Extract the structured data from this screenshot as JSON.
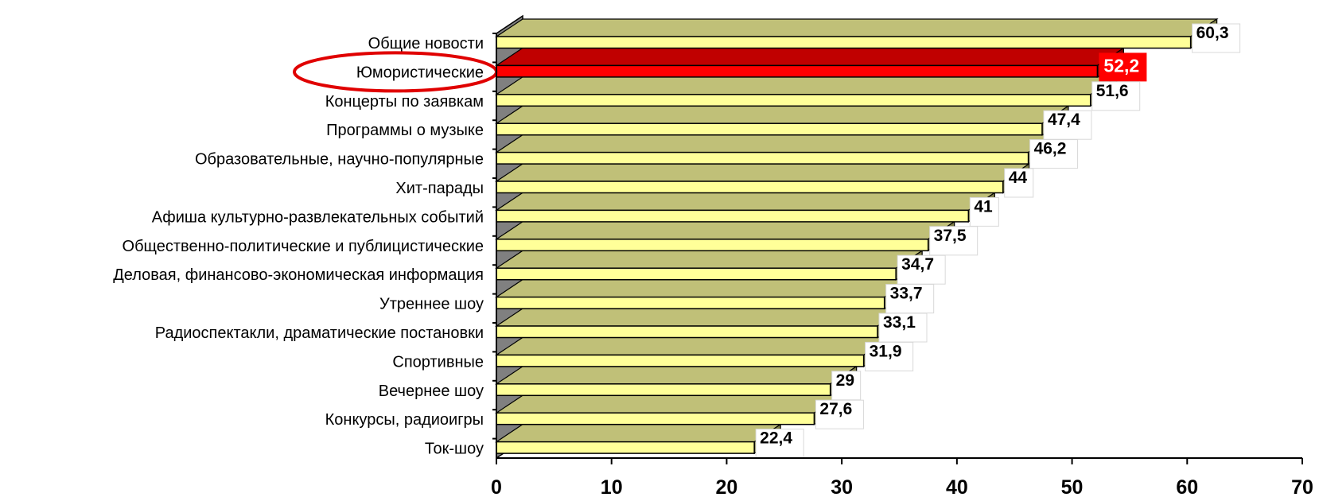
{
  "chart_data": {
    "type": "bar",
    "orientation": "horizontal",
    "categories": [
      "Общие новости",
      "Юмористические",
      "Концерты по заявкам",
      "Программы о музыке",
      "Образовательные, научно-популярные",
      "Хит-парады",
      "Афиша культурно-развлекательных событий",
      "Общественно-политические и публицистические",
      "Деловая, финансово-экономическая информация",
      "Утреннее шоу",
      "Радиоспектакли, драматические постановки",
      "Спортивные",
      "Вечернее шоу",
      "Конкурсы, радиоигры",
      "Ток-шоу"
    ],
    "values": [
      60.3,
      52.2,
      51.6,
      47.4,
      46.2,
      44,
      41,
      37.5,
      34.7,
      33.7,
      33.1,
      31.9,
      29,
      27.6,
      22.4
    ],
    "value_labels": [
      "60,3",
      "52,2",
      "51,6",
      "47,4",
      "46,2",
      "44",
      "41",
      "37,5",
      "34,7",
      "33,7",
      "33,1",
      "31,9",
      "29",
      "27,6",
      "22,4"
    ],
    "highlighted_index": 1,
    "xlim": [
      0,
      70
    ],
    "x_ticks": [
      0,
      10,
      20,
      30,
      40,
      50,
      60,
      70
    ],
    "x_tick_labels": [
      "0",
      "10",
      "20",
      "30",
      "40",
      "50",
      "60",
      "70"
    ],
    "title": "",
    "xlabel": "",
    "ylabel": "",
    "grid": false,
    "legend": "none",
    "colors": {
      "bar_front": "#ffff99",
      "bar_top": "#c0c078",
      "bar_side": "#807f4a",
      "highlight_front": "#ff0000",
      "highlight_top": "#c00000",
      "highlight_side": "#800000",
      "wall": "#808080",
      "outline": "#000000",
      "circle": "#e00000"
    }
  }
}
